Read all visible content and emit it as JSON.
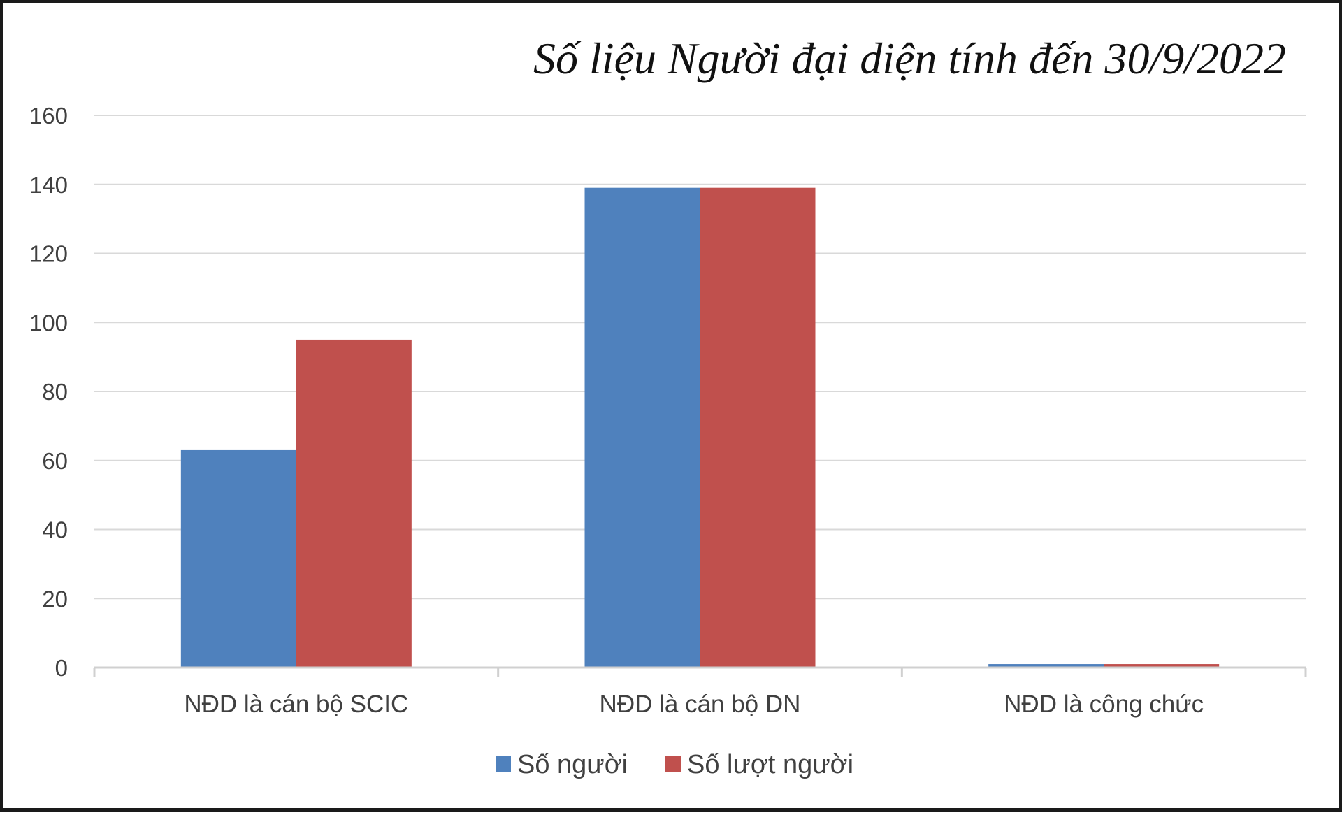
{
  "chart_data": {
    "type": "bar",
    "title": "Số liệu Người đại diện tính đến 30/9/2022",
    "categories": [
      "NĐD là cán bộ SCIC",
      "NĐD là cán bộ DN",
      "NĐD là công chức"
    ],
    "series": [
      {
        "name": "Số người",
        "values": [
          63,
          139,
          1
        ],
        "color": "#4F81BD"
      },
      {
        "name": "Số lượt người",
        "values": [
          95,
          139,
          1
        ],
        "color": "#C0504D"
      }
    ],
    "xlabel": "",
    "ylabel": "",
    "ylim": [
      0,
      160
    ],
    "yticks": [
      0,
      20,
      40,
      60,
      80,
      100,
      120,
      140,
      160
    ],
    "grid": true,
    "legend_position": "bottom",
    "gridline_color": "#d9d9d9",
    "axis_color": "#d0d0d0"
  }
}
